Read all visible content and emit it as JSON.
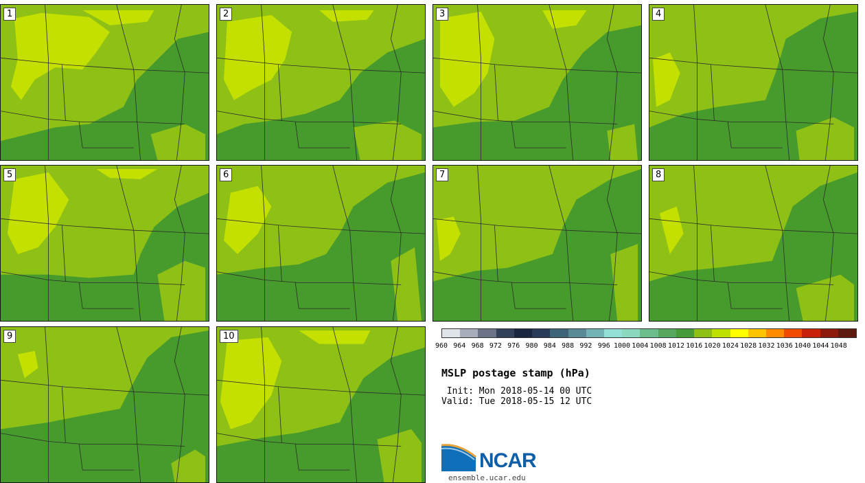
{
  "title": "MSLP postage stamp (hPa)",
  "init_line": " Init: Mon 2018-05-14 00 UTC",
  "valid_line": "Valid: Tue 2018-05-15 12 UTC",
  "logo_text": "NCAR",
  "logo_url": "ensemble.ucar.edu",
  "panels": [
    {
      "label": "1"
    },
    {
      "label": "2"
    },
    {
      "label": "3"
    },
    {
      "label": "4"
    },
    {
      "label": "5"
    },
    {
      "label": "6"
    },
    {
      "label": "7"
    },
    {
      "label": "8"
    },
    {
      "label": "9"
    },
    {
      "label": "10"
    }
  ],
  "colorbar": {
    "labels": [
      "960",
      "964",
      "968",
      "972",
      "976",
      "980",
      "984",
      "988",
      "992",
      "996",
      "1000",
      "1004",
      "1008",
      "1012",
      "1016",
      "1020",
      "1024",
      "1028",
      "1032",
      "1036",
      "1040",
      "1044",
      "1048"
    ],
    "colors": [
      "#dfe3ea",
      "#a8adbb",
      "#6b7388",
      "#33405a",
      "#1a2540",
      "#273b58",
      "#3f6478",
      "#5a8a95",
      "#74b2b5",
      "#92dfd6",
      "#8ad9bf",
      "#6bbd8c",
      "#55a85d",
      "#479b39",
      "#8ec016",
      "#bfe000",
      "#ffff00",
      "#ffc400",
      "#ff8c00",
      "#f24a00",
      "#c8220a",
      "#8e1a0e",
      "#5e1a0e"
    ]
  },
  "colors": {
    "high": "#c3e001",
    "mid": "#8ec016",
    "low": "#479b2c",
    "boundary": "#2a2a2a"
  }
}
